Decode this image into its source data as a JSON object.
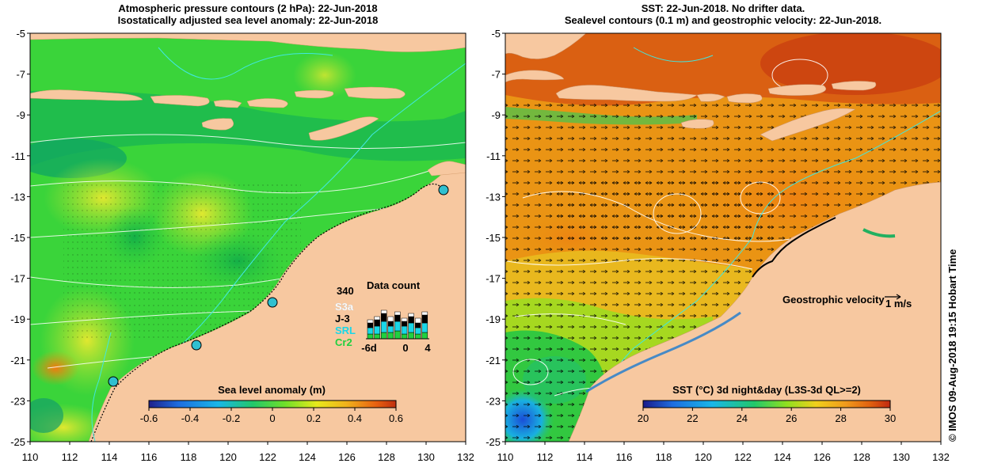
{
  "left_panel": {
    "title_line1": "Atmospheric pressure contours (2 hPa): 22-Jun-2018",
    "title_line2": "Isostatically adjusted sea level anomaly: 22-Jun-2018",
    "colorbar_title": "Sea level anomaly (m)",
    "colorbar_ticks": [
      "-0.6",
      "-0.4",
      "-0.2",
      "0",
      "0.2",
      "0.4",
      "0.6"
    ],
    "colorbar_colors": [
      "#20208a",
      "#1e6de0",
      "#19b7e8",
      "#22c86a",
      "#6fe02a",
      "#e8e81c",
      "#f0b21c",
      "#e86010",
      "#c03010"
    ],
    "data_count": {
      "title": "Data count",
      "max_label": "340",
      "satellites": [
        {
          "name": "S3a",
          "color": "#ffffff"
        },
        {
          "name": "J-3",
          "color": "#000000"
        },
        {
          "name": "SRL",
          "color": "#19d7e8"
        },
        {
          "name": "Cr2",
          "color": "#20d040"
        }
      ],
      "x_labels": [
        "-6d",
        "0",
        "4"
      ]
    }
  },
  "right_panel": {
    "title_line1": "SST: 22-Jun-2018. No drifter data.",
    "title_line2": "Sealevel contours (0.1 m) and geostrophic velocity: 22-Jun-2018.",
    "colorbar_title": "SST (°C) 3d night&day (L3S-3d QL>=2)",
    "colorbar_ticks": [
      "20",
      "22",
      "24",
      "26",
      "28",
      "30"
    ],
    "colorbar_colors": [
      "#1a1a8a",
      "#1e6de0",
      "#19b7e8",
      "#22c86a",
      "#8fe020",
      "#f0d01c",
      "#f09a1c",
      "#e06010",
      "#c02810"
    ],
    "velocity_label": "Geostrophic velocity",
    "velocity_scale": "1 m/s"
  },
  "axes": {
    "lat_ticks": [
      "-5",
      "-7",
      "-9",
      "-11",
      "-13",
      "-15",
      "-17",
      "-19",
      "-21",
      "-23",
      "-25"
    ],
    "lon_ticks": [
      "110",
      "112",
      "114",
      "116",
      "118",
      "120",
      "122",
      "124",
      "126",
      "128",
      "130",
      "132"
    ]
  },
  "credit": "© IMOS 09-Aug-2018 19:15 Hobart Time",
  "colors": {
    "land": "#f7c8a0",
    "ocean_green": "#3dd83a",
    "sst_orange": "#e8900c"
  }
}
